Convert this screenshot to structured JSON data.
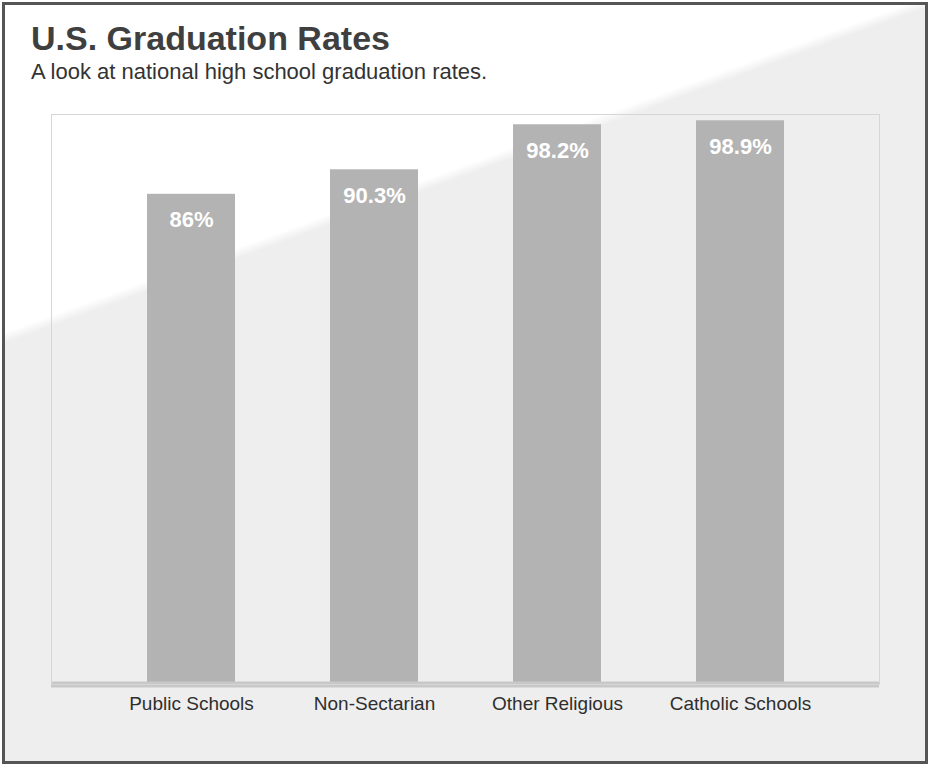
{
  "chart_data": {
    "type": "bar",
    "title": "U.S. Graduation Rates",
    "subtitle": "A look at national high school graduation rates.",
    "categories": [
      "Public Schools",
      "Non-Sectarian",
      "Other Religious",
      "Catholic Schools"
    ],
    "values": [
      86,
      90.3,
      98.2,
      98.9
    ],
    "value_labels": [
      "86%",
      "90.3%",
      "98.2%",
      "98.9%"
    ],
    "color": "#b3b3b3",
    "ylim": [
      0,
      100
    ],
    "grid": false,
    "data_labels": true,
    "tick_labels": "x"
  }
}
